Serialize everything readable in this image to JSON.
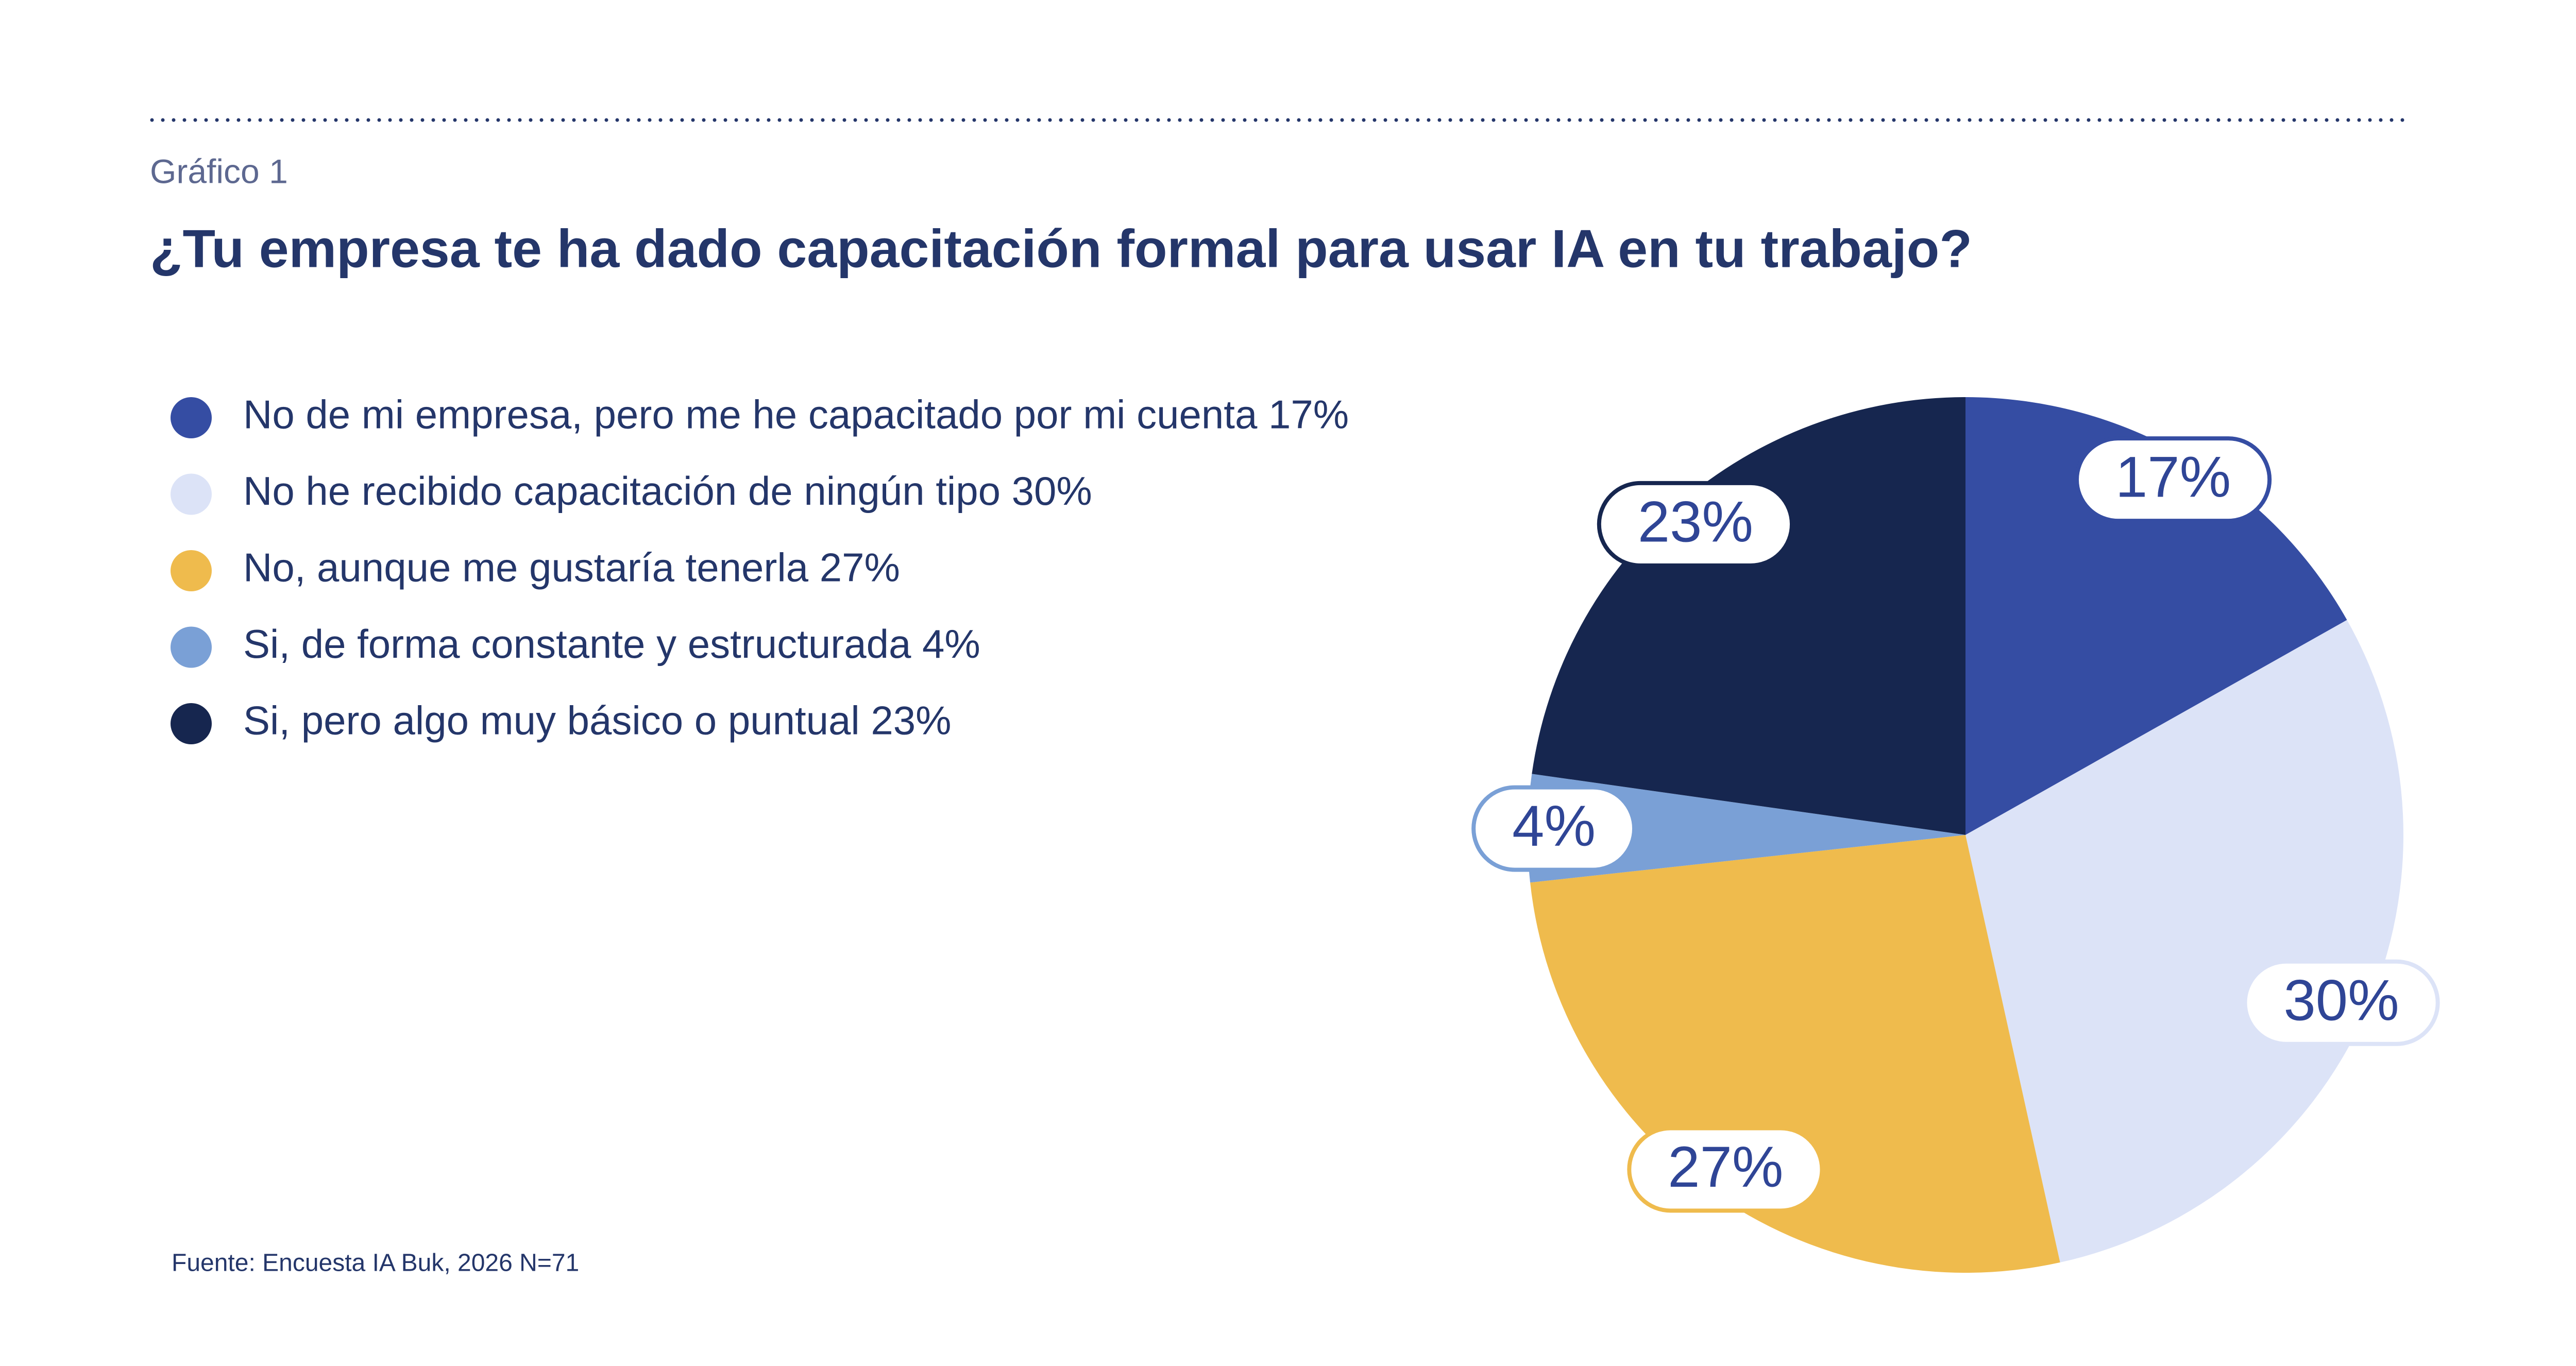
{
  "kicker": "Gráfico 1",
  "source": "Fuente: Encuesta IA Buk, 2026 N=71",
  "chart_data": {
    "type": "pie",
    "title": "¿Tu empresa te ha dado capacitación formal para usar IA en tu trabajo?",
    "categories": [
      "No de mi empresa, pero me he capacitado por mi cuenta 17%",
      "No he recibido capacitación de ningún tipo 30%",
      "No, aunque me gustaría tenerla 27%",
      "Si, de forma constante y estructurada 4%",
      "Si, pero algo muy básico o puntual 23%"
    ],
    "values": [
      17,
      30,
      27,
      4,
      23
    ],
    "value_labels": [
      "17%",
      "30%",
      "27%",
      "4%",
      "23%"
    ],
    "colors": [
      "#354da3",
      "#dce3f7",
      "#efbb4d",
      "#7aa0d6",
      "#16264f"
    ]
  }
}
